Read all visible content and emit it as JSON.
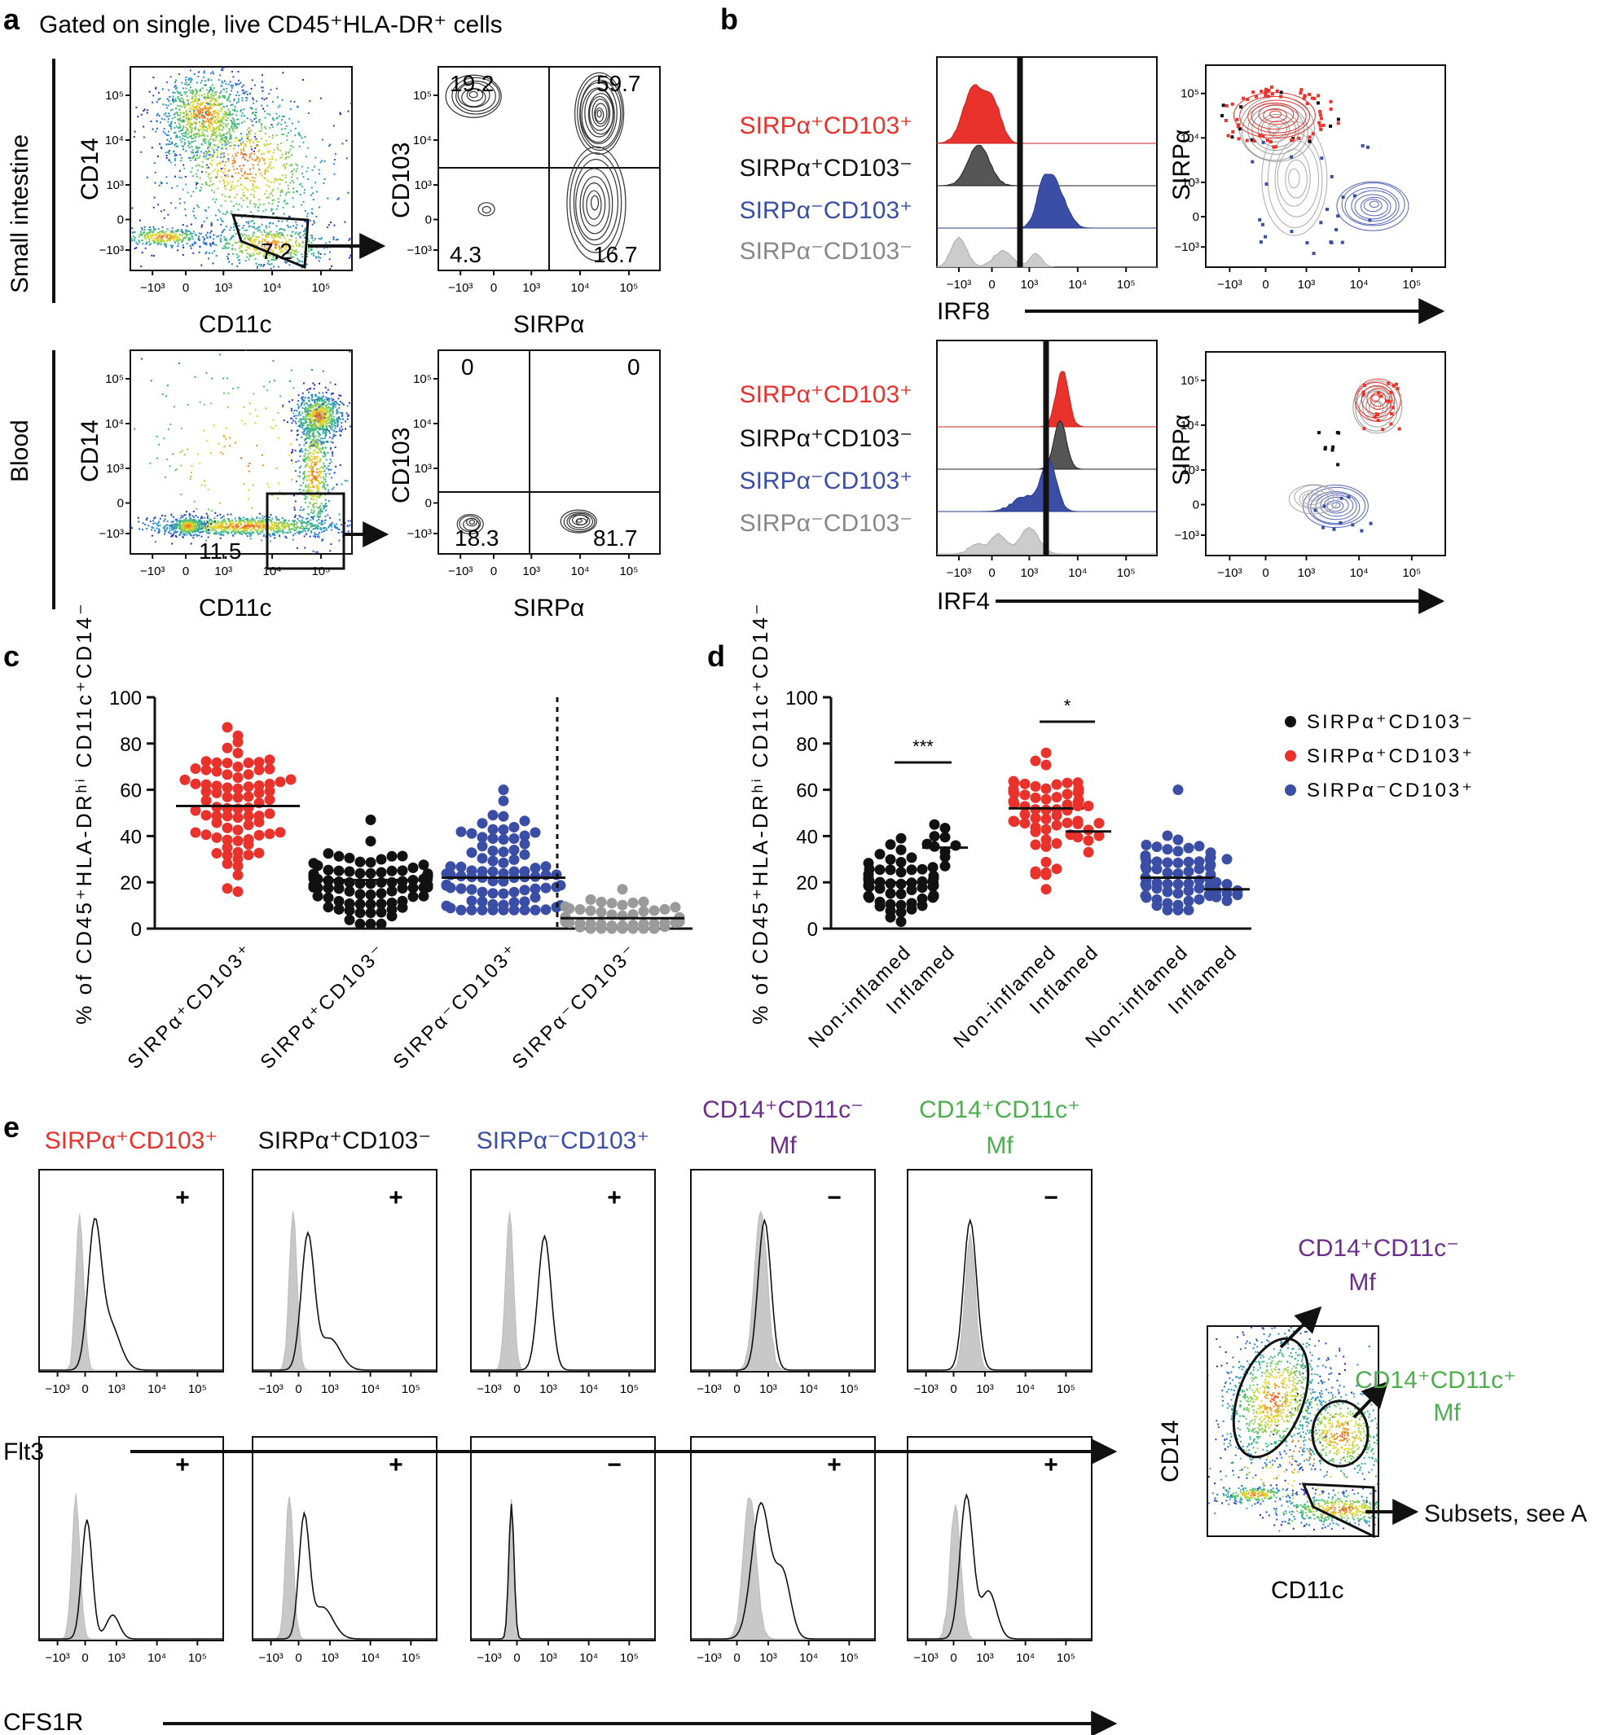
{
  "panel_labels": {
    "a": "a",
    "b": "b",
    "c": "c",
    "d": "d",
    "e": "e"
  },
  "colors": {
    "red": "#e8322b",
    "black": "#111111",
    "blue": "#3b4ea6",
    "grey": "#9a9a9a",
    "purple": "#6b2e8a",
    "green": "#4cae4c"
  },
  "panel_a": {
    "gating_title": "Gated on single, live CD45⁺HLA-DR⁺ cells",
    "row_labels": [
      "Small intestine",
      "Blood"
    ],
    "dot_x_label": "CD11c",
    "dot_y_label": "CD14",
    "contour_x_label": "SIRPα",
    "contour_y_label": "CD103",
    "log_ticks": [
      "−10³",
      "0",
      "10³",
      "10⁴",
      "10⁵"
    ],
    "gate_values": [
      "7.2",
      "11.5"
    ],
    "quadrants_small_intestine": {
      "top_left": "19.2",
      "top_right": "59.7",
      "bottom_left": "4.3",
      "bottom_right": "16.7"
    },
    "quadrants_blood": {
      "top_left": "0",
      "top_right": "0",
      "bottom_left": "18.3",
      "bottom_right": "81.7"
    }
  },
  "panel_b": {
    "subsets": [
      "SIRPα⁺CD103⁺",
      "SIRPα⁺CD103⁻",
      "SIRPα⁻CD103⁺",
      "SIRPα⁻CD103⁻"
    ],
    "hist_labels": [
      "IRF8",
      "IRF4"
    ],
    "overlay_y_label": "SIRPα"
  },
  "chart_data": [
    {
      "panel": "c",
      "type": "scatter",
      "title": "",
      "ylabel": "% of CD45⁺HLA-DRʰⁱ CD11c⁺CD14⁻",
      "ylim": [
        0,
        100
      ],
      "yticks": [
        "0",
        "20",
        "40",
        "60",
        "80",
        "100"
      ],
      "categories": [
        "SIRPα⁺CD103⁺",
        "SIRPα⁺CD103⁻",
        "SIRPα⁻CD103⁺",
        "SIRPα⁻CD103⁻"
      ],
      "medians": [
        53,
        21,
        22,
        4.5
      ],
      "ranges": [
        [
          16,
          87
        ],
        [
          2,
          47
        ],
        [
          8,
          60
        ],
        [
          0,
          17
        ]
      ],
      "n_points": [
        80,
        86,
        84,
        60
      ]
    },
    {
      "panel": "d",
      "type": "scatter",
      "title": "",
      "ylabel": "% of CD45⁺HLA-DRʰⁱ CD11c⁺CD14⁻",
      "ylim": [
        0,
        100
      ],
      "yticks": [
        "0",
        "20",
        "40",
        "60",
        "80",
        "100"
      ],
      "categories": [
        "Non-inflamed",
        "Inflamed",
        "Non-inflamed",
        "Inflamed",
        "Non-inflamed",
        "Inflamed"
      ],
      "series": [
        {
          "name": "SIRPα⁺CD103⁻",
          "medians": [
            20,
            35
          ],
          "ranges": [
            [
              3,
              39
            ],
            [
              27,
              45
            ]
          ],
          "n_points": [
            55,
            10
          ]
        },
        {
          "name": "SIRPα⁺CD103⁺",
          "medians": [
            52,
            42
          ],
          "ranges": [
            [
              17,
              76
            ],
            [
              33,
              53
            ]
          ],
          "n_points": [
            60,
            10
          ]
        },
        {
          "name": "SIRPα⁻CD103⁺",
          "medians": [
            22,
            17
          ],
          "ranges": [
            [
              8,
              60
            ],
            [
              12,
              30
            ]
          ],
          "n_points": [
            58,
            10
          ]
        }
      ],
      "significance": [
        "***",
        "*"
      ]
    }
  ],
  "panel_e": {
    "columns": [
      {
        "title": "SIRPα⁺CD103⁺",
        "title2": ""
      },
      {
        "title": "SIRPα⁺CD103⁻",
        "title2": ""
      },
      {
        "title": "SIRPα⁻CD103⁺",
        "title2": ""
      },
      {
        "title": "CD14⁺CD11c⁻",
        "title2": "Mf"
      },
      {
        "title": "CD14⁺CD11c⁺",
        "title2": "Mf"
      }
    ],
    "row_labels": [
      "Flt3",
      "CFS1R"
    ],
    "signs_flt3": [
      "+",
      "+",
      "+",
      "−",
      "−"
    ],
    "signs_csf1r": [
      "+",
      "+",
      "−",
      "+",
      "+"
    ],
    "gate_plot": {
      "x_label": "CD11c",
      "y_label": "CD14",
      "gate1_line1": "CD14⁺CD11c⁻",
      "gate1_line2": "Mf",
      "gate2_line1": "CD14⁺CD11c⁺",
      "gate2_line2": "Mf",
      "gate3": "Subsets, see A"
    }
  }
}
